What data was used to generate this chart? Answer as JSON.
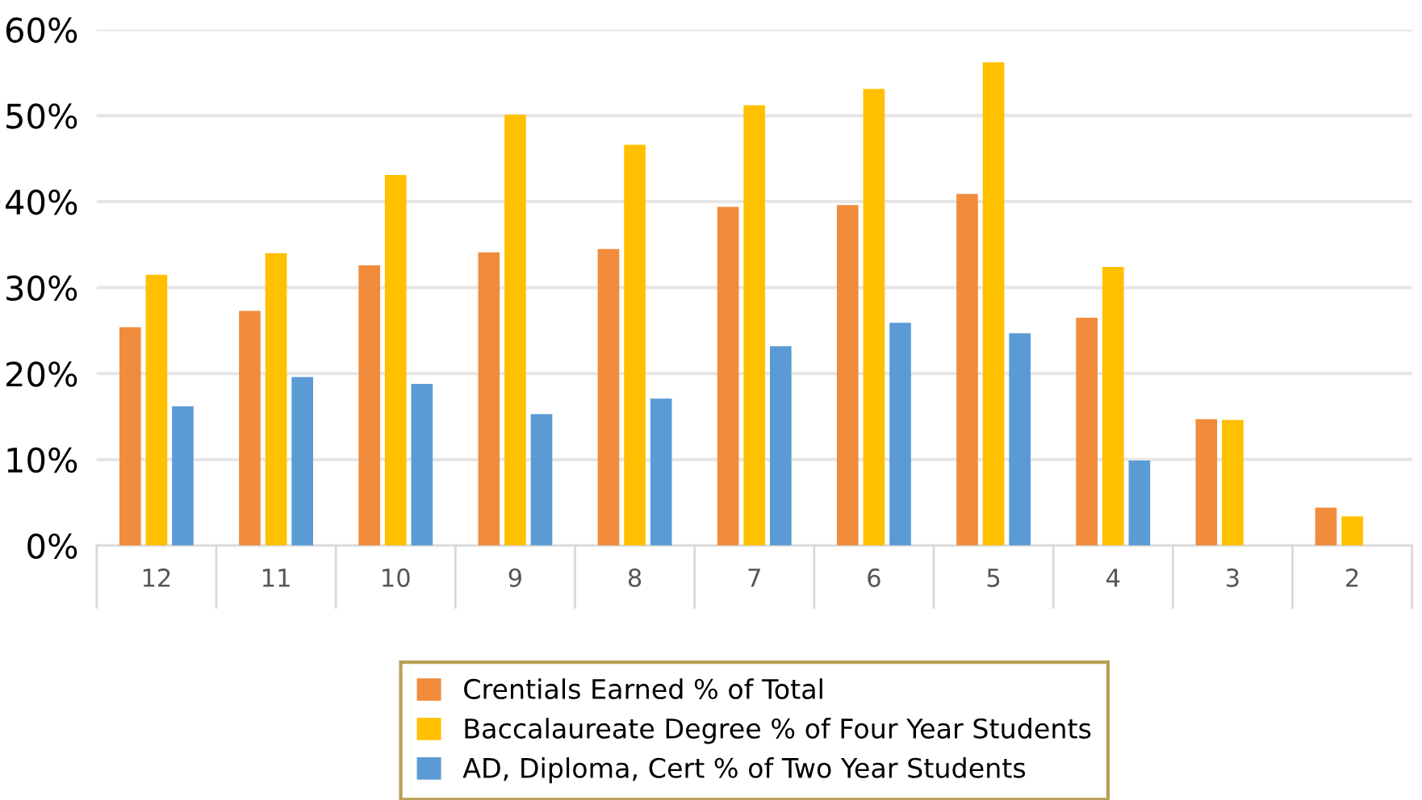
{
  "chart_data": {
    "type": "bar",
    "categories": [
      "12",
      "11",
      "10",
      "9",
      "8",
      "7",
      "6",
      "5",
      "4",
      "3",
      "2"
    ],
    "series": [
      {
        "name": "Crentials Earned % of Total",
        "color": "#f08c3c",
        "values": [
          25.4,
          27.3,
          32.6,
          34.1,
          34.5,
          39.4,
          39.6,
          40.9,
          26.5,
          14.7,
          4.4
        ]
      },
      {
        "name": "Baccalaureate Degree % of Four Year Students",
        "color": "#ffc000",
        "values": [
          31.5,
          34.0,
          43.1,
          50.1,
          46.6,
          51.2,
          53.1,
          56.2,
          32.4,
          14.6,
          3.4
        ]
      },
      {
        "name": "AD, Diploma, Cert % of Two Year Students",
        "color": "#5b9bd5",
        "values": [
          16.2,
          19.6,
          18.8,
          15.3,
          17.1,
          23.2,
          25.9,
          24.7,
          9.9,
          null,
          null
        ]
      }
    ],
    "ylim": [
      0,
      60
    ],
    "yticks": [
      {
        "value": 0,
        "label": "0%"
      },
      {
        "value": 10,
        "label": "10%"
      },
      {
        "value": 20,
        "label": "20%"
      },
      {
        "value": 30,
        "label": "30%"
      },
      {
        "value": 40,
        "label": "40%"
      },
      {
        "value": 50,
        "label": "50%"
      },
      {
        "value": 60,
        "label": "60%"
      }
    ],
    "grid": "y",
    "legend": "bottom"
  }
}
